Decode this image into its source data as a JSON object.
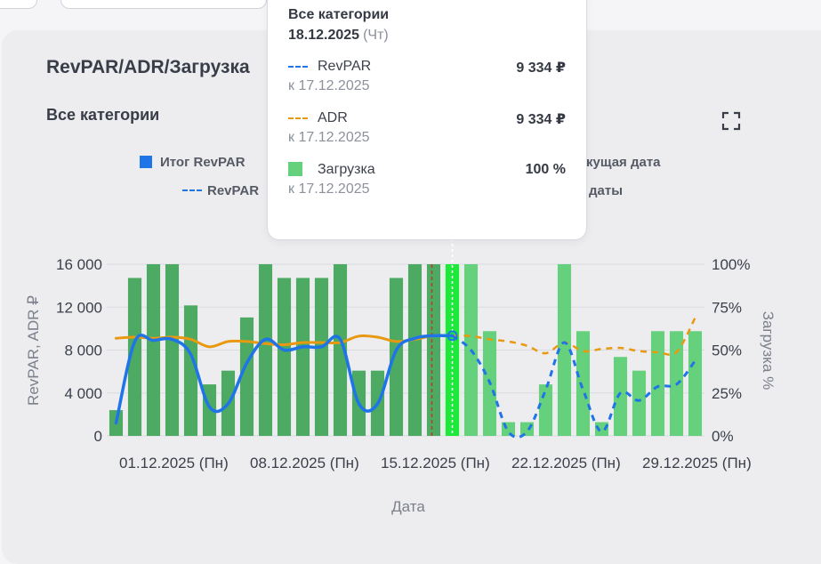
{
  "card": {
    "title": "RevPAR/ADR/Загрузка",
    "subtitle": "Все категории"
  },
  "legend": {
    "total_revpar": "Итог RevPAR",
    "revpar_forecast": "RevPAR",
    "current_date_suffix": "кущая дата",
    "dates_suffix": "даты"
  },
  "tooltip": {
    "title": "Все категории",
    "date": "18.12.2025",
    "weekday": "(Чт)",
    "rows": [
      {
        "name": "RevPAR",
        "value": "9 334 ₽",
        "ref": "к 17.12.2025",
        "color": "#1f74e8"
      },
      {
        "name": "ADR",
        "value": "9 334 ₽",
        "ref": "к 17.12.2025",
        "color": "#e8990f"
      },
      {
        "name": "Загрузка",
        "value": "100 %",
        "ref": "к 17.12.2025",
        "color": "#66d17c"
      }
    ]
  },
  "colors": {
    "bar_past": "#4caa62",
    "bar_future": "#66d17c",
    "bar_selected": "#1ee83a",
    "revpar": "#1f74e8",
    "adr": "#e8990f",
    "today_line": "#c0392b"
  },
  "chart_data": {
    "type": "bar",
    "xlabel": "Дата",
    "ylabel": "RevPAR, ADR ₽",
    "y2label": "Загрузка %",
    "ylim": [
      0,
      16000
    ],
    "y2lim": [
      0,
      100
    ],
    "y_ticks": [
      "0",
      "4 000",
      "8 000",
      "12 000",
      "16 000"
    ],
    "y2_ticks": [
      "0%",
      "25%",
      "50%",
      "75%",
      "100%"
    ],
    "x_ticks": [
      "01.12.2025 (Пн)",
      "08.12.2025 (Пн)",
      "15.12.2025 (Пн)",
      "22.12.2025 (Пн)",
      "29.12.2025 (Пн)"
    ],
    "grid": true,
    "dates": [
      "30.11",
      "01.12",
      "02.12",
      "03.12",
      "04.12",
      "05.12",
      "06.12",
      "07.12",
      "08.12",
      "09.12",
      "10.12",
      "11.12",
      "12.12",
      "13.12",
      "14.12",
      "15.12",
      "16.12",
      "17.12",
      "18.12",
      "19.12",
      "20.12",
      "21.12",
      "22.12",
      "23.12",
      "24.12",
      "25.12",
      "26.12",
      "27.12",
      "28.12",
      "29.12",
      "30.12",
      "31.12"
    ],
    "current_date": "17.12",
    "selected_date": "18.12",
    "series": [
      {
        "name": "Загрузка",
        "kind": "bar",
        "axis": "right",
        "values": [
          15,
          92,
          100,
          100,
          76,
          30,
          38,
          69,
          100,
          92,
          92,
          92,
          100,
          38,
          38,
          92,
          100,
          100,
          100,
          100,
          61,
          8,
          8,
          30,
          100,
          61,
          8,
          46,
          38,
          61,
          61,
          61
        ]
      },
      {
        "name": "RevPAR",
        "kind": "line",
        "axis": "left",
        "values": [
          1200,
          8800,
          8900,
          9000,
          7600,
          2700,
          3000,
          6800,
          9000,
          8000,
          8300,
          8300,
          9000,
          3000,
          3000,
          8000,
          9100,
          9334,
          9334,
          8000,
          5000,
          400,
          400,
          4300,
          8700,
          4300,
          400,
          4000,
          3300,
          4600,
          4800,
          7000
        ],
        "forecast_from": "18.12"
      },
      {
        "name": "ADR",
        "kind": "line",
        "axis": "left",
        "values": [
          9100,
          9200,
          9100,
          9200,
          9000,
          8300,
          8800,
          8800,
          8600,
          8500,
          8700,
          8700,
          8700,
          9300,
          9200,
          8800,
          9000,
          9334,
          9334,
          9300,
          9000,
          8800,
          8400,
          7700,
          8700,
          7900,
          8100,
          8200,
          7900,
          7800,
          7800,
          11000
        ],
        "forecast_from": "18.12"
      }
    ]
  }
}
